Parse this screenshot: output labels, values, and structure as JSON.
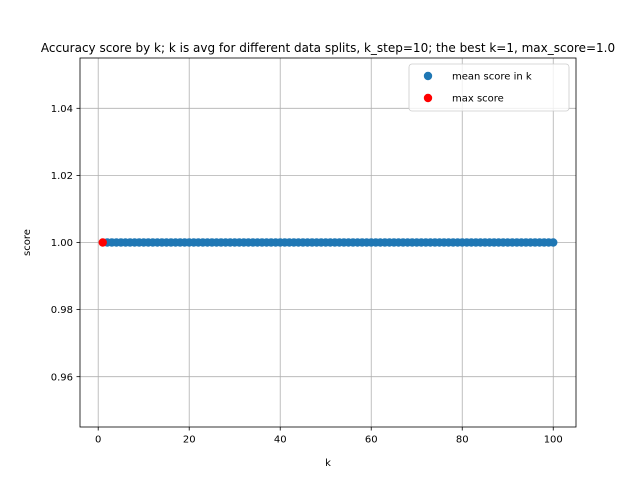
{
  "chart_data": {
    "type": "scatter",
    "title": "Accuracy score by k; k is avg for different data splits, k_step=10; the best k=1, max_score=1.0",
    "xlabel": "k",
    "ylabel": "score",
    "xlim": [
      -4.0,
      105.0
    ],
    "ylim": [
      0.945,
      1.055
    ],
    "xticks": [
      0,
      20,
      40,
      60,
      80,
      100
    ],
    "yticks": [
      0.96,
      0.98,
      1.0,
      1.02,
      1.04
    ],
    "xtick_labels": [
      "0",
      "20",
      "40",
      "60",
      "80",
      "100"
    ],
    "ytick_labels": [
      "0.96",
      "0.98",
      "1.00",
      "1.02",
      "1.04"
    ],
    "grid": true,
    "legend_position": "top-right",
    "series": [
      {
        "name": "mean score in k",
        "color": "#1f77b4",
        "x_start": 2,
        "x_end": 100,
        "x_step": 1,
        "y": 1.0
      },
      {
        "name": "max score",
        "color": "#ff0000",
        "x": [
          1
        ],
        "y": [
          1.0
        ]
      }
    ]
  }
}
